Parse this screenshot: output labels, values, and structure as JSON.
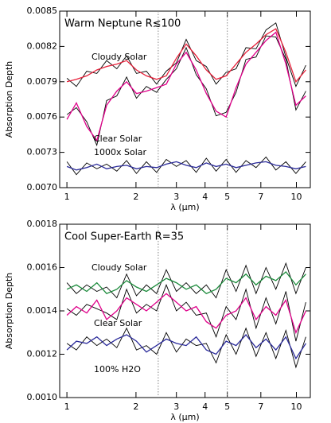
{
  "chart_data": [
    {
      "type": "line",
      "title": "Warm Neptune R≲100",
      "xlabel": "λ (μm)",
      "ylabel": "Absorption Depth",
      "xscale": "log",
      "xlim": [
        0.93,
        11.5
      ],
      "xticks": [
        1,
        2,
        3,
        4,
        5,
        7,
        10
      ],
      "ylim": [
        0.007,
        0.0085
      ],
      "yticks": [
        {
          "value": 0.007,
          "label": "0.0070"
        },
        0.0073,
        0.0076,
        0.0079,
        0.0082,
        0.0085
      ],
      "vlines": [
        2.5,
        5
      ],
      "x": [
        1.0,
        1.1,
        1.22,
        1.35,
        1.49,
        1.65,
        1.82,
        2.01,
        2.22,
        2.46,
        2.71,
        3.0,
        3.31,
        3.66,
        4.05,
        4.47,
        4.94,
        5.46,
        6.03,
        6.67,
        7.37,
        8.14,
        9.0,
        9.95,
        11.0
      ],
      "series": [
        {
          "color": "#000000",
          "values": [
            0.00793,
            0.00786,
            0.00799,
            0.00797,
            0.00808,
            0.00801,
            0.00812,
            0.00797,
            0.00799,
            0.00788,
            0.00799,
            0.00806,
            0.00826,
            0.00808,
            0.00803,
            0.00788,
            0.00798,
            0.00801,
            0.00819,
            0.00818,
            0.00834,
            0.0084,
            0.00811,
            0.00786,
            0.00804
          ]
        },
        {
          "color": "#000000",
          "values": [
            0.00762,
            0.00768,
            0.00756,
            0.00736,
            0.00774,
            0.00778,
            0.00794,
            0.00776,
            0.00786,
            0.00781,
            0.00792,
            0.00801,
            0.00819,
            0.00796,
            0.00784,
            0.00761,
            0.00764,
            0.00781,
            0.00809,
            0.00811,
            0.00829,
            0.00828,
            0.00809,
            0.00766,
            0.00782
          ]
        },
        {
          "color": "#000000",
          "values": [
            0.00722,
            0.00711,
            0.00721,
            0.00716,
            0.0072,
            0.00714,
            0.00723,
            0.00712,
            0.00722,
            0.00713,
            0.00724,
            0.00718,
            0.00723,
            0.00713,
            0.00725,
            0.00714,
            0.00724,
            0.00713,
            0.00723,
            0.00717,
            0.00726,
            0.00715,
            0.00722,
            0.00712,
            0.00722
          ]
        },
        {
          "name": "Cloudy Solar",
          "color": "#e8203a",
          "label_color": "#e8203a",
          "values": [
            0.0079,
            0.00792,
            0.00795,
            0.008,
            0.00803,
            0.00805,
            0.00808,
            0.008,
            0.00795,
            0.00792,
            0.00795,
            0.0081,
            0.00822,
            0.00812,
            0.008,
            0.00792,
            0.00795,
            0.00805,
            0.00815,
            0.00822,
            0.0083,
            0.00835,
            0.00815,
            0.0079,
            0.008
          ]
        },
        {
          "name": "Clear Solar",
          "color": "#e0008a",
          "label_color": "#e0008a",
          "values": [
            0.00758,
            0.00772,
            0.00752,
            0.0074,
            0.0077,
            0.00782,
            0.0079,
            0.0078,
            0.00782,
            0.00785,
            0.00788,
            0.00805,
            0.00815,
            0.008,
            0.0078,
            0.00765,
            0.0076,
            0.00785,
            0.00805,
            0.00815,
            0.00825,
            0.00832,
            0.00805,
            0.0077,
            0.00778
          ]
        },
        {
          "name": "1000x Solar",
          "color": "#2a2a9a",
          "label_color": "#2a2a9a",
          "values": [
            0.00718,
            0.00715,
            0.00717,
            0.0072,
            0.00716,
            0.00718,
            0.00719,
            0.00716,
            0.00718,
            0.00717,
            0.0072,
            0.00722,
            0.00719,
            0.00717,
            0.00721,
            0.00718,
            0.0072,
            0.00717,
            0.00719,
            0.00721,
            0.00722,
            0.00719,
            0.00718,
            0.00716,
            0.00718
          ]
        }
      ]
    },
    {
      "type": "line",
      "title": "Cool Super-Earth R=35",
      "xlabel": "λ (μm)",
      "ylabel": "Absorption Depth",
      "xscale": "log",
      "xlim": [
        0.93,
        11.5
      ],
      "xticks": [
        1,
        2,
        3,
        4,
        5,
        7,
        10
      ],
      "ylim": [
        0.001,
        0.0018
      ],
      "yticks": [
        {
          "value": 0.001,
          "label": "0.0010"
        },
        0.0012,
        0.0014,
        0.0016,
        0.0018
      ],
      "vlines": [
        2.5,
        5
      ],
      "x": [
        1.0,
        1.1,
        1.22,
        1.35,
        1.49,
        1.65,
        1.82,
        2.01,
        2.22,
        2.46,
        2.71,
        3.0,
        3.31,
        3.66,
        4.05,
        4.47,
        4.94,
        5.46,
        6.03,
        6.67,
        7.37,
        8.14,
        9.0,
        9.95,
        11.0
      ],
      "series": [
        {
          "color": "#000000",
          "values": [
            0.00153,
            0.00148,
            0.00152,
            0.00149,
            0.00151,
            0.00146,
            0.00157,
            0.00147,
            0.00152,
            0.00148,
            0.00159,
            0.00149,
            0.00153,
            0.00148,
            0.00152,
            0.00146,
            0.00159,
            0.00149,
            0.00161,
            0.00148,
            0.0016,
            0.0015,
            0.00162,
            0.00148,
            0.0016
          ]
        },
        {
          "color": "#000000",
          "values": [
            0.00141,
            0.00138,
            0.00143,
            0.00141,
            0.00139,
            0.00136,
            0.0015,
            0.00139,
            0.00143,
            0.0014,
            0.00152,
            0.0014,
            0.00144,
            0.00138,
            0.00139,
            0.00128,
            0.00142,
            0.00136,
            0.0015,
            0.00132,
            0.00146,
            0.00134,
            0.00149,
            0.00126,
            0.00144
          ]
        },
        {
          "color": "#000000",
          "values": [
            0.00125,
            0.00122,
            0.00128,
            0.00124,
            0.00127,
            0.00123,
            0.00132,
            0.00122,
            0.00124,
            0.0012,
            0.0013,
            0.00121,
            0.00127,
            0.00124,
            0.00125,
            0.00116,
            0.00129,
            0.0012,
            0.00132,
            0.00119,
            0.0013,
            0.00118,
            0.00131,
            0.00114,
            0.00128
          ]
        },
        {
          "name": "Cloudy Solar",
          "color": "#1a8a3a",
          "label_color": "#e8203a",
          "values": [
            0.0015,
            0.00152,
            0.00149,
            0.00153,
            0.00148,
            0.0015,
            0.00154,
            0.00151,
            0.00149,
            0.00152,
            0.00155,
            0.00153,
            0.0015,
            0.00152,
            0.00148,
            0.0015,
            0.00155,
            0.00153,
            0.00157,
            0.00152,
            0.00156,
            0.00154,
            0.00158,
            0.00152,
            0.00157
          ]
        },
        {
          "name": "Clear Solar",
          "color": "#e0008a",
          "label_color": "#e0008a",
          "values": [
            0.00138,
            0.00142,
            0.00139,
            0.00145,
            0.00136,
            0.0014,
            0.00146,
            0.00143,
            0.0014,
            0.00144,
            0.00148,
            0.00144,
            0.0014,
            0.00142,
            0.00135,
            0.00132,
            0.00138,
            0.0014,
            0.00146,
            0.00136,
            0.00142,
            0.00138,
            0.00145,
            0.0013,
            0.0014
          ]
        },
        {
          "name": "100% H2O",
          "color": "#2a2a9a",
          "label_color": "#2a2a9a",
          "values": [
            0.00122,
            0.00126,
            0.00125,
            0.00128,
            0.00124,
            0.00127,
            0.00129,
            0.00126,
            0.00121,
            0.00124,
            0.00127,
            0.00125,
            0.00124,
            0.00128,
            0.00122,
            0.0012,
            0.00126,
            0.00124,
            0.00129,
            0.00123,
            0.00127,
            0.00122,
            0.00128,
            0.00118,
            0.00125
          ]
        }
      ]
    }
  ]
}
